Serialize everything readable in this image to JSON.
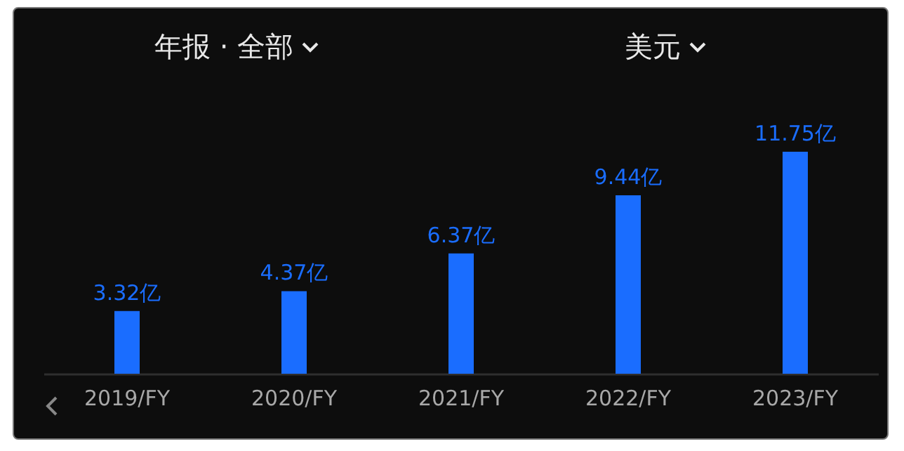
{
  "chart_data": {
    "type": "bar",
    "annotations": [
      "年报 · 全部",
      "美元"
    ],
    "categories": [
      "2019/FY",
      "2020/FY",
      "2021/FY",
      "2022/FY",
      "2023/FY"
    ],
    "values": [
      3.32,
      4.37,
      6.37,
      9.44,
      11.75
    ],
    "value_labels": [
      "3.32亿",
      "4.37亿",
      "6.37亿",
      "9.44亿",
      "11.75亿"
    ],
    "color": "#1a6dff"
  }
}
